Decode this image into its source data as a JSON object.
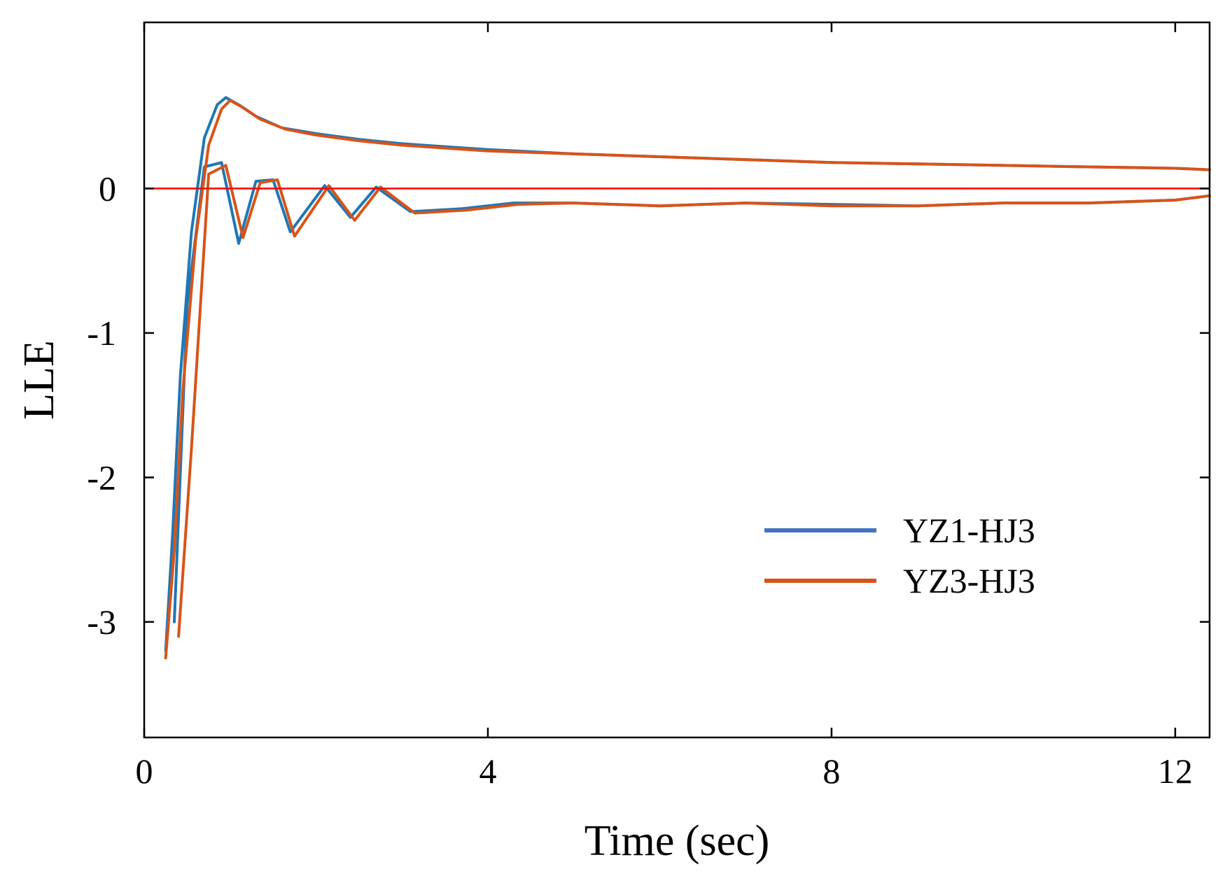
{
  "chart_data": {
    "type": "line",
    "title": "",
    "xlabel": "Time (sec)",
    "ylabel": "LLE",
    "xlim": [
      0,
      12.4
    ],
    "ylim": [
      -3.8,
      1.15
    ],
    "xticks": [
      0,
      4,
      8,
      12
    ],
    "xtick_labels": [
      "0",
      "4",
      "8",
      "12"
    ],
    "yticks": [
      0,
      -1,
      -2,
      -3
    ],
    "ytick_labels": [
      "0",
      "-1",
      "-2",
      "-3"
    ],
    "grid": false,
    "legend_position": "center-right",
    "reference_line": {
      "y": 0,
      "color": "#ff0000"
    },
    "series": [
      {
        "name": "YZ1-HJ3",
        "color": "#1f77b4",
        "legend_color": "#4472c4",
        "upper_branch": {
          "x": [
            0.25,
            0.33,
            0.42,
            0.55,
            0.7,
            0.85,
            0.95,
            1.1,
            1.3,
            1.6,
            2.0,
            2.5,
            3.0,
            3.5,
            4.0,
            5.0,
            6.0,
            7.0,
            8.0,
            9.0,
            10.0,
            11.0,
            12.0,
            12.4
          ],
          "y": [
            -3.2,
            -2.4,
            -1.3,
            -0.3,
            0.35,
            0.58,
            0.63,
            0.58,
            0.5,
            0.42,
            0.38,
            0.34,
            0.31,
            0.29,
            0.27,
            0.24,
            0.22,
            0.2,
            0.18,
            0.17,
            0.16,
            0.15,
            0.14,
            0.13
          ]
        },
        "lower_branch": {
          "x": [
            0.35,
            0.5,
            0.7,
            0.9,
            1.1,
            1.3,
            1.5,
            1.7,
            2.1,
            2.4,
            2.7,
            3.1,
            3.7,
            4.3,
            5.0,
            6.0,
            7.0,
            8.0,
            9.0,
            10.0,
            11.0,
            12.0,
            12.4
          ],
          "y": [
            -3.0,
            -0.8,
            0.15,
            0.18,
            -0.38,
            0.05,
            0.06,
            -0.3,
            0.02,
            -0.2,
            0.01,
            -0.16,
            -0.14,
            -0.1,
            -0.1,
            -0.12,
            -0.1,
            -0.11,
            -0.12,
            -0.1,
            -0.1,
            -0.08,
            -0.05
          ]
        }
      },
      {
        "name": "YZ3-HJ3",
        "color": "#d95319",
        "legend_color": "#d95319",
        "upper_branch": {
          "x": [
            0.25,
            0.35,
            0.45,
            0.6,
            0.75,
            0.9,
            1.0,
            1.15,
            1.35,
            1.65,
            2.0,
            2.5,
            3.0,
            3.5,
            4.0,
            5.0,
            6.0,
            7.0,
            8.0,
            9.0,
            10.0,
            11.0,
            12.0,
            12.4
          ],
          "y": [
            -3.25,
            -2.5,
            -1.4,
            -0.35,
            0.3,
            0.55,
            0.61,
            0.56,
            0.48,
            0.41,
            0.37,
            0.33,
            0.3,
            0.28,
            0.26,
            0.24,
            0.22,
            0.2,
            0.18,
            0.17,
            0.16,
            0.15,
            0.14,
            0.13
          ]
        },
        "lower_branch": {
          "x": [
            0.4,
            0.55,
            0.75,
            0.95,
            1.15,
            1.35,
            1.55,
            1.75,
            2.15,
            2.45,
            2.75,
            3.15,
            3.75,
            4.35,
            5.0,
            6.0,
            7.0,
            8.0,
            9.0,
            10.0,
            11.0,
            12.0,
            12.4
          ],
          "y": [
            -3.1,
            -1.8,
            0.1,
            0.16,
            -0.34,
            0.04,
            0.06,
            -0.33,
            0.02,
            -0.22,
            0.01,
            -0.17,
            -0.15,
            -0.11,
            -0.1,
            -0.12,
            -0.1,
            -0.12,
            -0.12,
            -0.1,
            -0.1,
            -0.08,
            -0.05
          ]
        }
      }
    ]
  }
}
